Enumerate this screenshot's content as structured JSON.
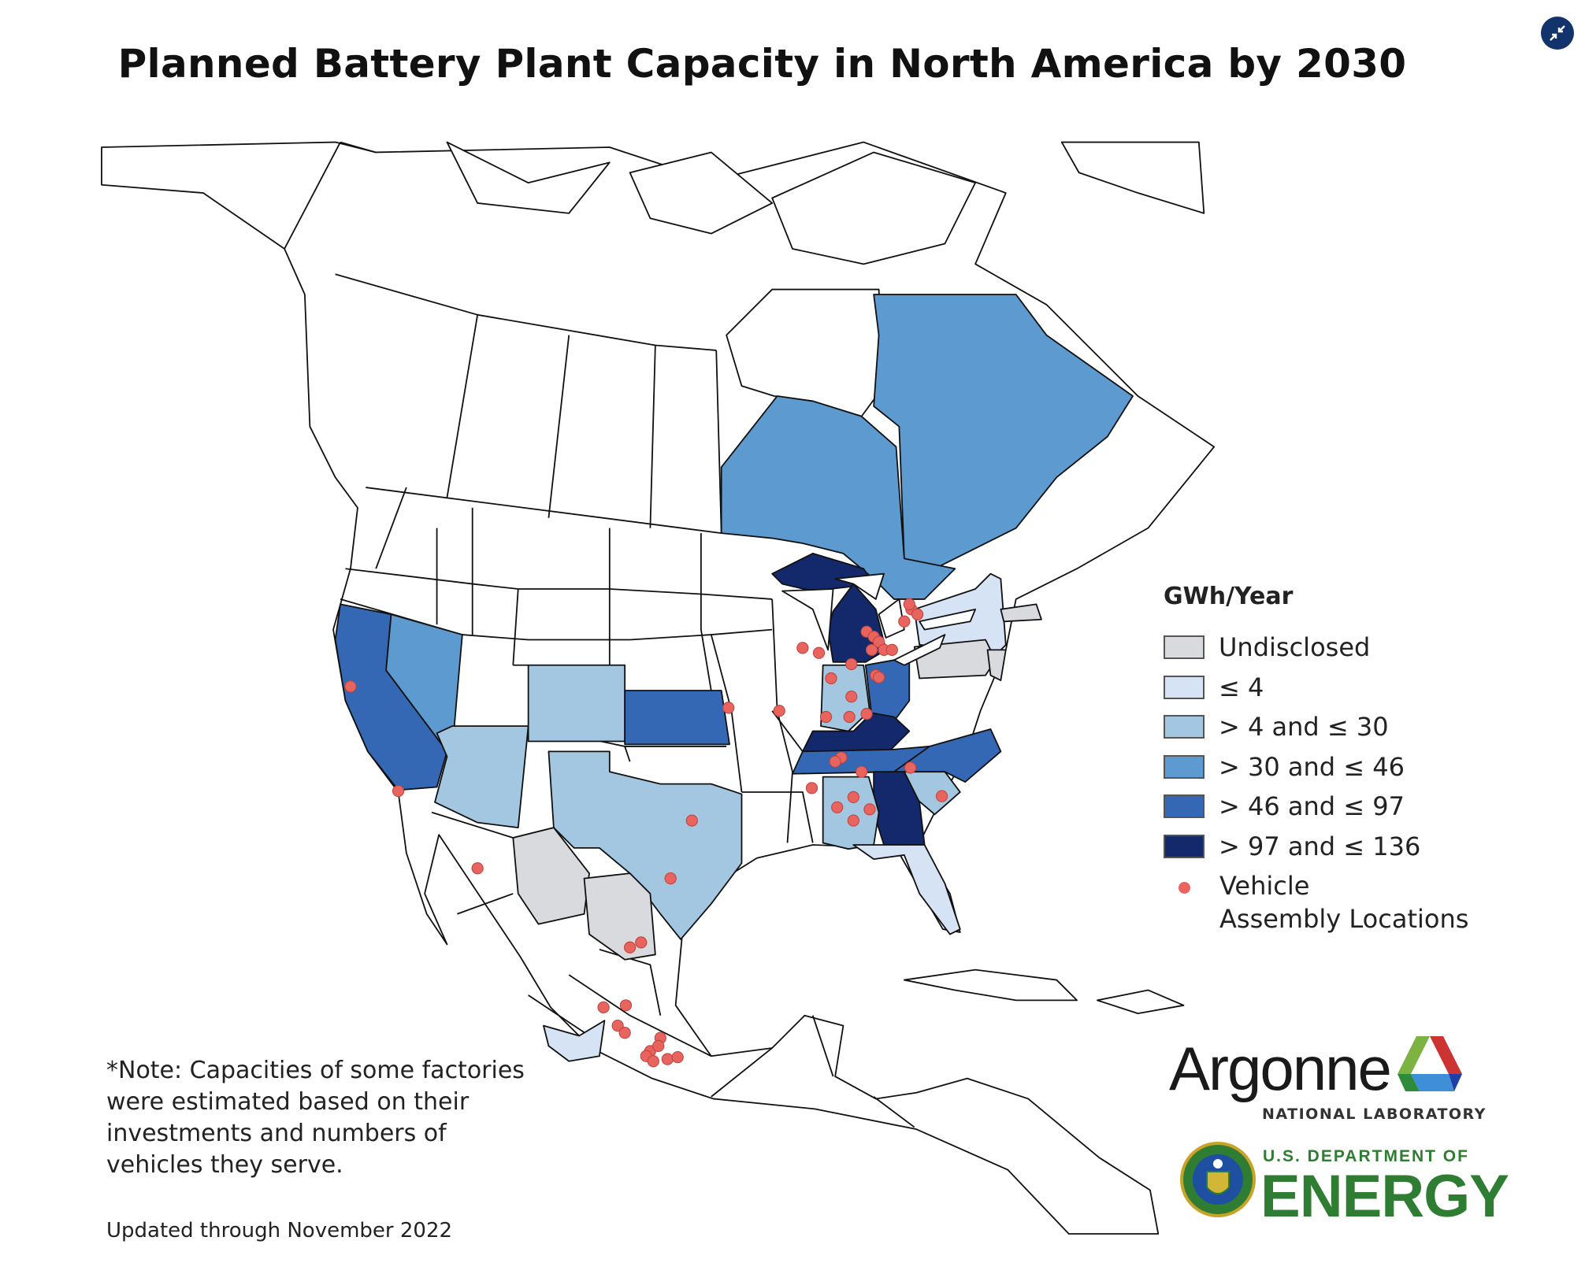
{
  "title": "Planned Battery Plant Capacity in North America by 2030",
  "legend": {
    "title": "GWh/Year",
    "items": [
      {
        "key": "undisclosed",
        "label": "Undisclosed",
        "color": "#d9dadd"
      },
      {
        "key": "le4",
        "label": "≤ 4",
        "color": "#d5e3f4"
      },
      {
        "key": "4to30",
        "label": "> 4 and ≤ 30",
        "color": "#a3c6e1"
      },
      {
        "key": "30to46",
        "label": "> 30 and ≤ 46",
        "color": "#5c9ad0"
      },
      {
        "key": "46to97",
        "label": "> 46 and ≤ 97",
        "color": "#3468b4"
      },
      {
        "key": "97to136",
        "label": "> 97 and ≤ 136",
        "color": "#13296b"
      }
    ],
    "vehicle": {
      "line1": "Vehicle",
      "line2": "Assembly Locations",
      "color": "#e8645e"
    }
  },
  "note": [
    "*Note: Capacities of some factories",
    "were estimated based on their",
    "investments and numbers of",
    "vehicles they serve."
  ],
  "updated": "Updated through November 2022",
  "logos": {
    "argonne": "Argonne",
    "argonne_sub": "NATIONAL LABORATORY",
    "doe_dept": "U.S. DEPARTMENT OF",
    "doe_energy": "ENERGY"
  },
  "controls": {
    "collapse_icon": "collapse-arrows-icon",
    "collapse_color": "#12336b"
  }
}
